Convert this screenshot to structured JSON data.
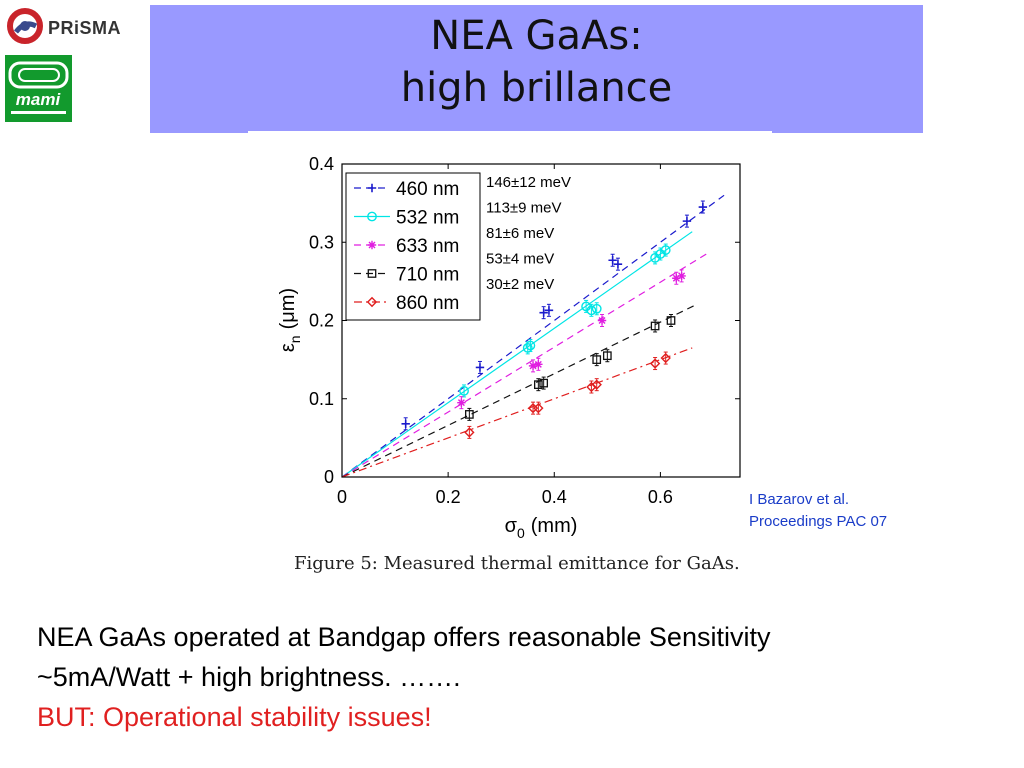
{
  "header": {
    "title_line1": "NEA GaAs:",
    "title_line2": "high brillance",
    "band_color": "#9999ff"
  },
  "logos": {
    "prisma_text": "PRiSMA",
    "mami_text": "mami"
  },
  "citation": {
    "line1": "I Bazarov et al.",
    "line2": "Proceedings PAC 07"
  },
  "caption": "Figure 5: Measured thermal emittance for GaAs.",
  "body": {
    "line1": "NEA GaAs operated at Bandgap offers reasonable Sensitivity",
    "line2": "~5mA/Watt + high brightness. …….",
    "line3": "BUT: Operational stability issues!"
  },
  "chart_data": {
    "type": "scatter",
    "xlabel": "σ",
    "xlabel_sub": "0",
    "xlabel_unit": "(mm)",
    "ylabel": "ε",
    "ylabel_sub": "n",
    "ylabel_unit": "(μm)",
    "xlim": [
      0,
      0.75
    ],
    "ylim": [
      0,
      0.4
    ],
    "xticks": [
      0,
      0.2,
      0.4,
      0.6
    ],
    "xtick_labels": [
      "0",
      "0.2",
      "0.4",
      "0.6"
    ],
    "yticks": [
      0,
      0.1,
      0.2,
      0.3,
      0.4
    ],
    "ytick_labels": [
      "0",
      "0.1",
      "0.2",
      "0.3",
      "0.4"
    ],
    "legend_position": "top-left",
    "series": [
      {
        "name": "460 nm",
        "color": "#1a1acc",
        "marker": "plus",
        "slope": 0.5,
        "fit_style": "dashed",
        "energy_label": "146±12 meV",
        "points": [
          [
            0.12,
            0.068
          ],
          [
            0.26,
            0.14
          ],
          [
            0.38,
            0.21
          ],
          [
            0.39,
            0.213
          ],
          [
            0.51,
            0.277
          ],
          [
            0.52,
            0.272
          ],
          [
            0.65,
            0.327
          ],
          [
            0.68,
            0.345
          ]
        ]
      },
      {
        "name": "532 nm",
        "color": "#00e5e5",
        "marker": "circle",
        "slope": 0.475,
        "fit_style": "solid",
        "energy_label": "113±9 meV",
        "points": [
          [
            0.23,
            0.11
          ],
          [
            0.35,
            0.165
          ],
          [
            0.355,
            0.168
          ],
          [
            0.46,
            0.218
          ],
          [
            0.47,
            0.213
          ],
          [
            0.48,
            0.215
          ],
          [
            0.59,
            0.28
          ],
          [
            0.6,
            0.285
          ],
          [
            0.61,
            0.29
          ]
        ]
      },
      {
        "name": "633 nm",
        "color": "#e01ee0",
        "marker": "star",
        "slope": 0.415,
        "fit_style": "dashed",
        "energy_label": "81±6 meV",
        "points": [
          [
            0.225,
            0.095
          ],
          [
            0.36,
            0.142
          ],
          [
            0.37,
            0.144
          ],
          [
            0.49,
            0.2
          ],
          [
            0.63,
            0.254
          ],
          [
            0.64,
            0.257
          ]
        ]
      },
      {
        "name": "710 nm",
        "color": "#111111",
        "marker": "square",
        "slope": 0.33,
        "fit_style": "dashed",
        "energy_label": "53±4 meV",
        "points": [
          [
            0.24,
            0.08
          ],
          [
            0.37,
            0.118
          ],
          [
            0.38,
            0.12
          ],
          [
            0.48,
            0.15
          ],
          [
            0.5,
            0.155
          ],
          [
            0.59,
            0.193
          ],
          [
            0.62,
            0.2
          ]
        ]
      },
      {
        "name": "860 nm",
        "color": "#e01e1e",
        "marker": "diamond",
        "slope": 0.25,
        "fit_style": "dashdot",
        "energy_label": "30±2 meV",
        "points": [
          [
            0.24,
            0.057
          ],
          [
            0.36,
            0.088
          ],
          [
            0.37,
            0.088
          ],
          [
            0.47,
            0.115
          ],
          [
            0.48,
            0.118
          ],
          [
            0.59,
            0.145
          ],
          [
            0.61,
            0.152
          ]
        ]
      }
    ]
  }
}
